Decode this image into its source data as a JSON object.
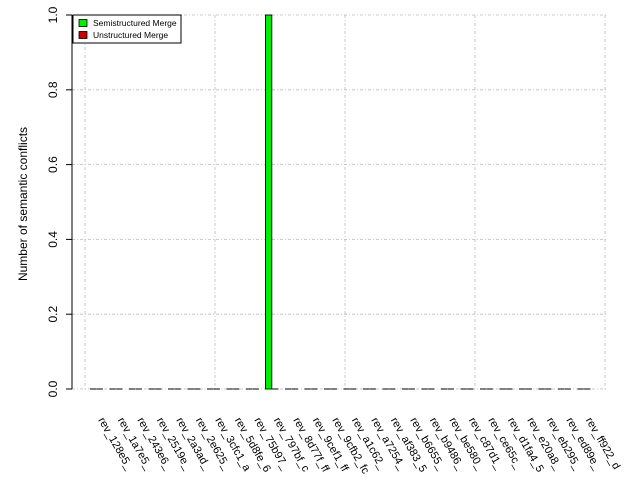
{
  "chart_data": {
    "type": "bar",
    "ylabel": "Number of semantic conflicts",
    "xlabel": "",
    "ylim": [
      0,
      1
    ],
    "yticks": [
      "0.0",
      "0.2",
      "0.4",
      "0.6",
      "0.8",
      "1.0"
    ],
    "grid": true,
    "legend_position": "top-left",
    "categories": [
      "rev_128e5_",
      "rev_1a7e5_",
      "rev_243e6_",
      "rev_2519e_",
      "rev_2a3ad_",
      "rev_2e625_",
      "rev_3cfc1_a",
      "rev_5d8fe_6",
      "rev_75b97_",
      "rev_797bf_c",
      "rev_8d77f_ff",
      "rev_9cef1_ff",
      "rev_9cfb2_fc",
      "rev_a1c62_",
      "rev_a7254_",
      "rev_af383_5",
      "rev_b6655_",
      "rev_b9486_",
      "rev_be580_",
      "rev_c87d1_",
      "rev_ce65c_",
      "rev_d1fa4_5",
      "rev_e20a8_",
      "rev_eb295_",
      "rev_ed89e_",
      "rev_ff922_d"
    ],
    "series": [
      {
        "name": "Semistructured Merge",
        "color": "#00ee00",
        "values": [
          0,
          0,
          0,
          0,
          0,
          0,
          0,
          0,
          0,
          1,
          0,
          0,
          0,
          0,
          0,
          0,
          0,
          0,
          0,
          0,
          0,
          0,
          0,
          0,
          0,
          0
        ]
      },
      {
        "name": "Unstructured Merge",
        "color": "#cc0000",
        "values": [
          0,
          0,
          0,
          0,
          0,
          0,
          0,
          0,
          0,
          0,
          0,
          0,
          0,
          0,
          0,
          0,
          0,
          0,
          0,
          0,
          0,
          0,
          0,
          0,
          0,
          0
        ]
      }
    ]
  }
}
